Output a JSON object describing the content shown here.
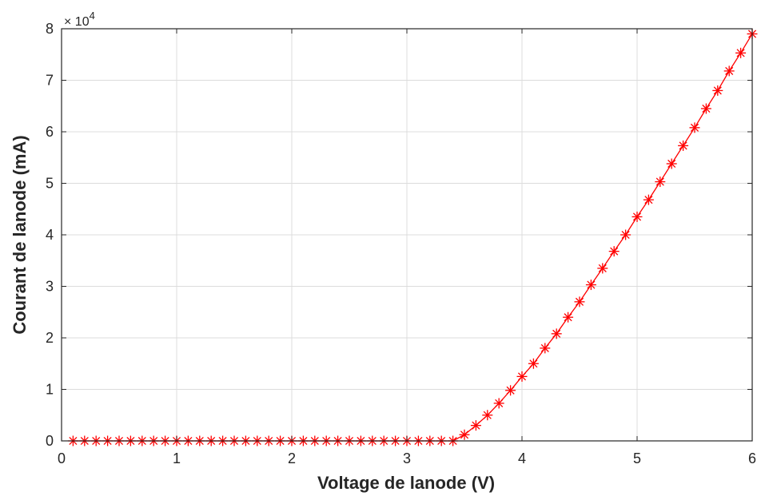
{
  "chart_data": {
    "type": "line",
    "xlabel": "Voltage de lanode (V)",
    "ylabel": "Courant de lanode (mA)",
    "xlim": [
      0,
      6
    ],
    "ylim": [
      0,
      8
    ],
    "xticks": [
      "0",
      "1",
      "2",
      "3",
      "4",
      "5",
      "6"
    ],
    "yticks": [
      "0",
      "1",
      "2",
      "3",
      "4",
      "5",
      "6",
      "7",
      "8"
    ],
    "y_multiplier": "× 10",
    "y_exponent": "4",
    "grid": true,
    "colors": {
      "series": "#ff0000",
      "grid": "#dcdcdc",
      "axis": "#262626"
    },
    "series": [
      {
        "marker": "asterisk",
        "x": [
          0.1,
          0.2,
          0.3,
          0.4,
          0.5,
          0.6,
          0.7,
          0.8,
          0.9,
          1.0,
          1.1,
          1.2,
          1.3,
          1.4,
          1.5,
          1.6,
          1.7,
          1.8,
          1.9,
          2.0,
          2.1,
          2.2,
          2.3,
          2.4,
          2.5,
          2.6,
          2.7,
          2.8,
          2.9,
          3.0,
          3.1,
          3.2,
          3.3,
          3.4,
          3.5,
          3.6,
          3.7,
          3.8,
          3.9,
          4.0,
          4.1,
          4.2,
          4.3,
          4.4,
          4.5,
          4.6,
          4.7,
          4.8,
          4.9,
          5.0,
          5.1,
          5.2,
          5.3,
          5.4,
          5.5,
          5.6,
          5.7,
          5.8,
          5.9,
          6.0
        ],
        "y": [
          0,
          0,
          0,
          0,
          0,
          0,
          0,
          0,
          0,
          0,
          0,
          0,
          0,
          0,
          0,
          0,
          0,
          0,
          0,
          0,
          0,
          0,
          0,
          0,
          0,
          0,
          0,
          0,
          0,
          0,
          0,
          0,
          0,
          0,
          0.12,
          0.3,
          0.5,
          0.73,
          0.98,
          1.25,
          1.5,
          1.8,
          2.08,
          2.4,
          2.7,
          3.03,
          3.35,
          3.68,
          4.0,
          4.35,
          4.68,
          5.03,
          5.38,
          5.73,
          6.08,
          6.45,
          6.8,
          7.18,
          7.53,
          7.9
        ]
      }
    ]
  }
}
